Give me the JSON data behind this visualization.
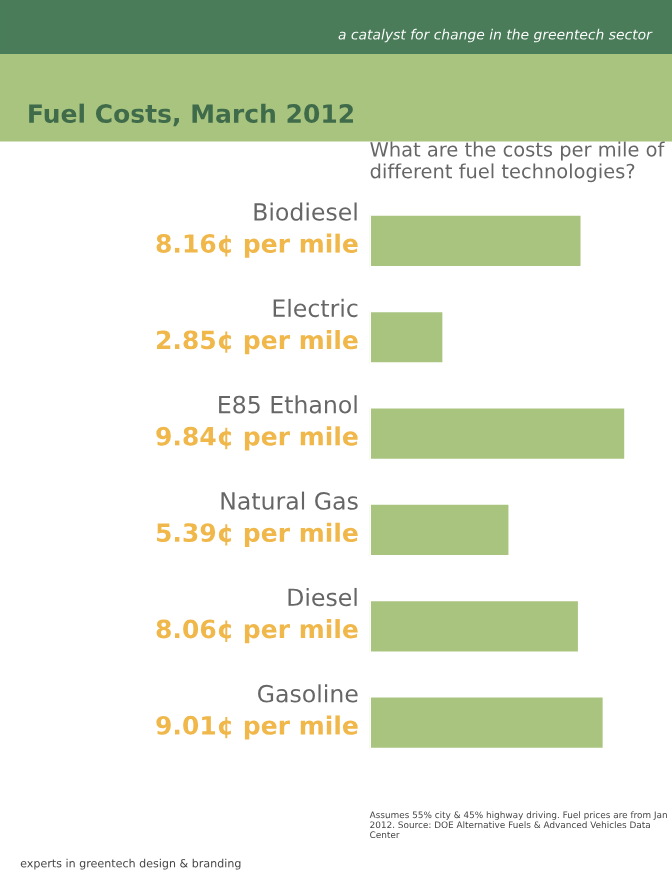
{
  "chart_data": {
    "type": "bar",
    "orientation": "horizontal",
    "title": "Fuel Costs, March 2012",
    "subtitle": "What are the costs per mile of different fuel technologies?",
    "categories": [
      "Biodiesel",
      "Electric",
      "E85 Ethanol",
      "Natural Gas",
      "Diesel",
      "Gasoline"
    ],
    "values": [
      8.16,
      2.85,
      9.84,
      5.39,
      8.06,
      9.01
    ],
    "value_labels": [
      "8.16¢ per mile",
      "2.85¢ per mile",
      "9.84¢ per mile",
      "5.39¢ per mile",
      "8.06¢ per mile",
      "9.01¢ per mile"
    ],
    "color": "#a9c47f",
    "tick_labels": false,
    "grid": false,
    "annotations": [
      "a catalyst for change in the greentech sector",
      "Assumes 55% city & 45% highway driving. Fuel prices are from Jan 2012. Source: DOE Alternative Fuels & Advanced Vehicles Data Center",
      "experts in greentech design & branding"
    ]
  }
}
